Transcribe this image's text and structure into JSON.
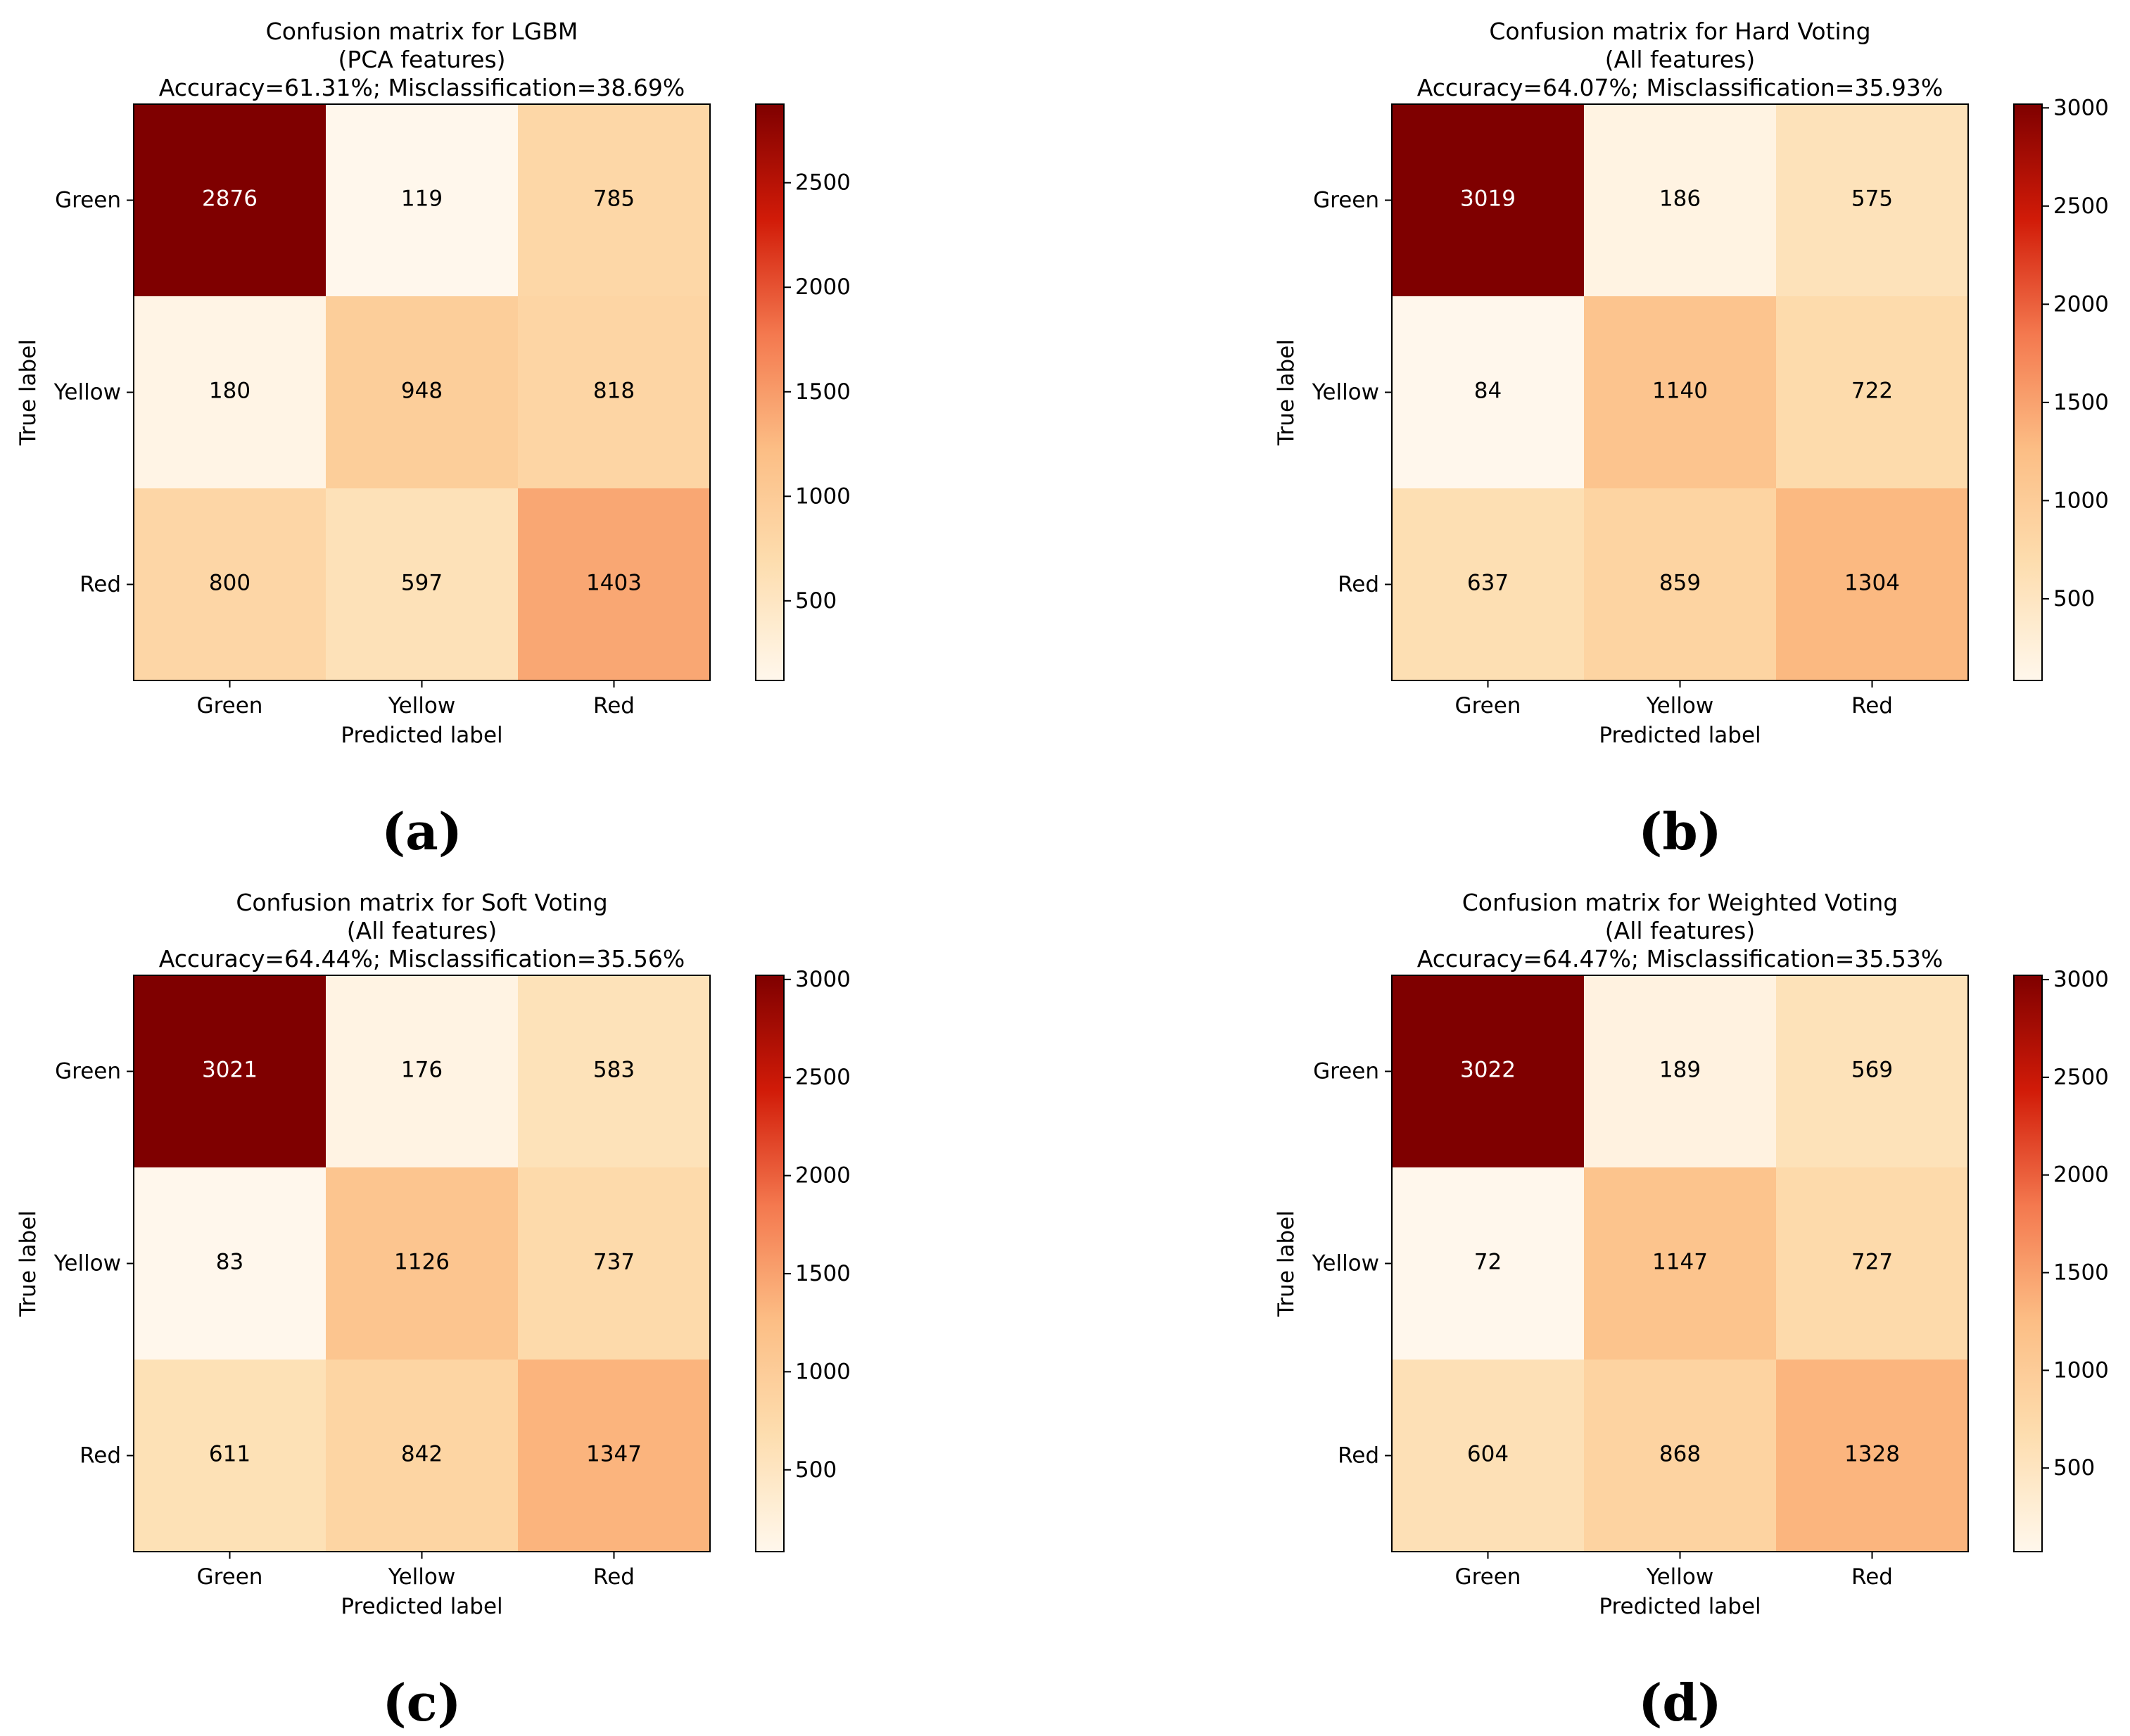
{
  "chart_data": [
    {
      "type": "heatmap",
      "title_lines": [
        "Confusion matrix for LGBM",
        "(PCA features)",
        "Accuracy=61.31%; Misclassification=38.69%"
      ],
      "xlabel": "Predicted label",
      "ylabel": "True label",
      "x_categories": [
        "Green",
        "Yellow",
        "Red"
      ],
      "y_categories": [
        "Green",
        "Yellow",
        "Red"
      ],
      "values": [
        [
          2876,
          119,
          785
        ],
        [
          180,
          948,
          818
        ],
        [
          800,
          597,
          1403
        ]
      ],
      "colorbar_range": [
        119,
        2876
      ],
      "colorbar_ticks": [
        500,
        1000,
        1500,
        2000,
        2500
      ],
      "colormap": "OrRd",
      "subcaption": "(a)"
    },
    {
      "type": "heatmap",
      "title_lines": [
        "Confusion matrix for Hard Voting",
        "(All features)",
        "Accuracy=64.07%; Misclassification=35.93%"
      ],
      "xlabel": "Predicted label",
      "ylabel": "True label",
      "x_categories": [
        "Green",
        "Yellow",
        "Red"
      ],
      "y_categories": [
        "Green",
        "Yellow",
        "Red"
      ],
      "values": [
        [
          3019,
          186,
          575
        ],
        [
          84,
          1140,
          722
        ],
        [
          637,
          859,
          1304
        ]
      ],
      "colorbar_range": [
        84,
        3019
      ],
      "colorbar_ticks": [
        500,
        1000,
        1500,
        2000,
        2500,
        3000
      ],
      "colormap": "OrRd",
      "subcaption": "(b)"
    },
    {
      "type": "heatmap",
      "title_lines": [
        "Confusion matrix for Soft Voting",
        "(All features)",
        "Accuracy=64.44%; Misclassification=35.56%"
      ],
      "xlabel": "Predicted label",
      "ylabel": "True label",
      "x_categories": [
        "Green",
        "Yellow",
        "Red"
      ],
      "y_categories": [
        "Green",
        "Yellow",
        "Red"
      ],
      "values": [
        [
          3021,
          176,
          583
        ],
        [
          83,
          1126,
          737
        ],
        [
          611,
          842,
          1347
        ]
      ],
      "colorbar_range": [
        83,
        3021
      ],
      "colorbar_ticks": [
        500,
        1000,
        1500,
        2000,
        2500,
        3000
      ],
      "colormap": "OrRd",
      "subcaption": "(c)"
    },
    {
      "type": "heatmap",
      "title_lines": [
        "Confusion matrix for Weighted Voting",
        "(All features)",
        "Accuracy=64.47%; Misclassification=35.53%"
      ],
      "xlabel": "Predicted label",
      "ylabel": "True label",
      "x_categories": [
        "Green",
        "Yellow",
        "Red"
      ],
      "y_categories": [
        "Green",
        "Yellow",
        "Red"
      ],
      "values": [
        [
          3022,
          189,
          569
        ],
        [
          72,
          1147,
          727
        ],
        [
          604,
          868,
          1328
        ]
      ],
      "colorbar_range": [
        72,
        3022
      ],
      "colorbar_ticks": [
        500,
        1000,
        1500,
        2000,
        2500,
        3000
      ],
      "colormap": "OrRd",
      "subcaption": "(d)"
    }
  ]
}
